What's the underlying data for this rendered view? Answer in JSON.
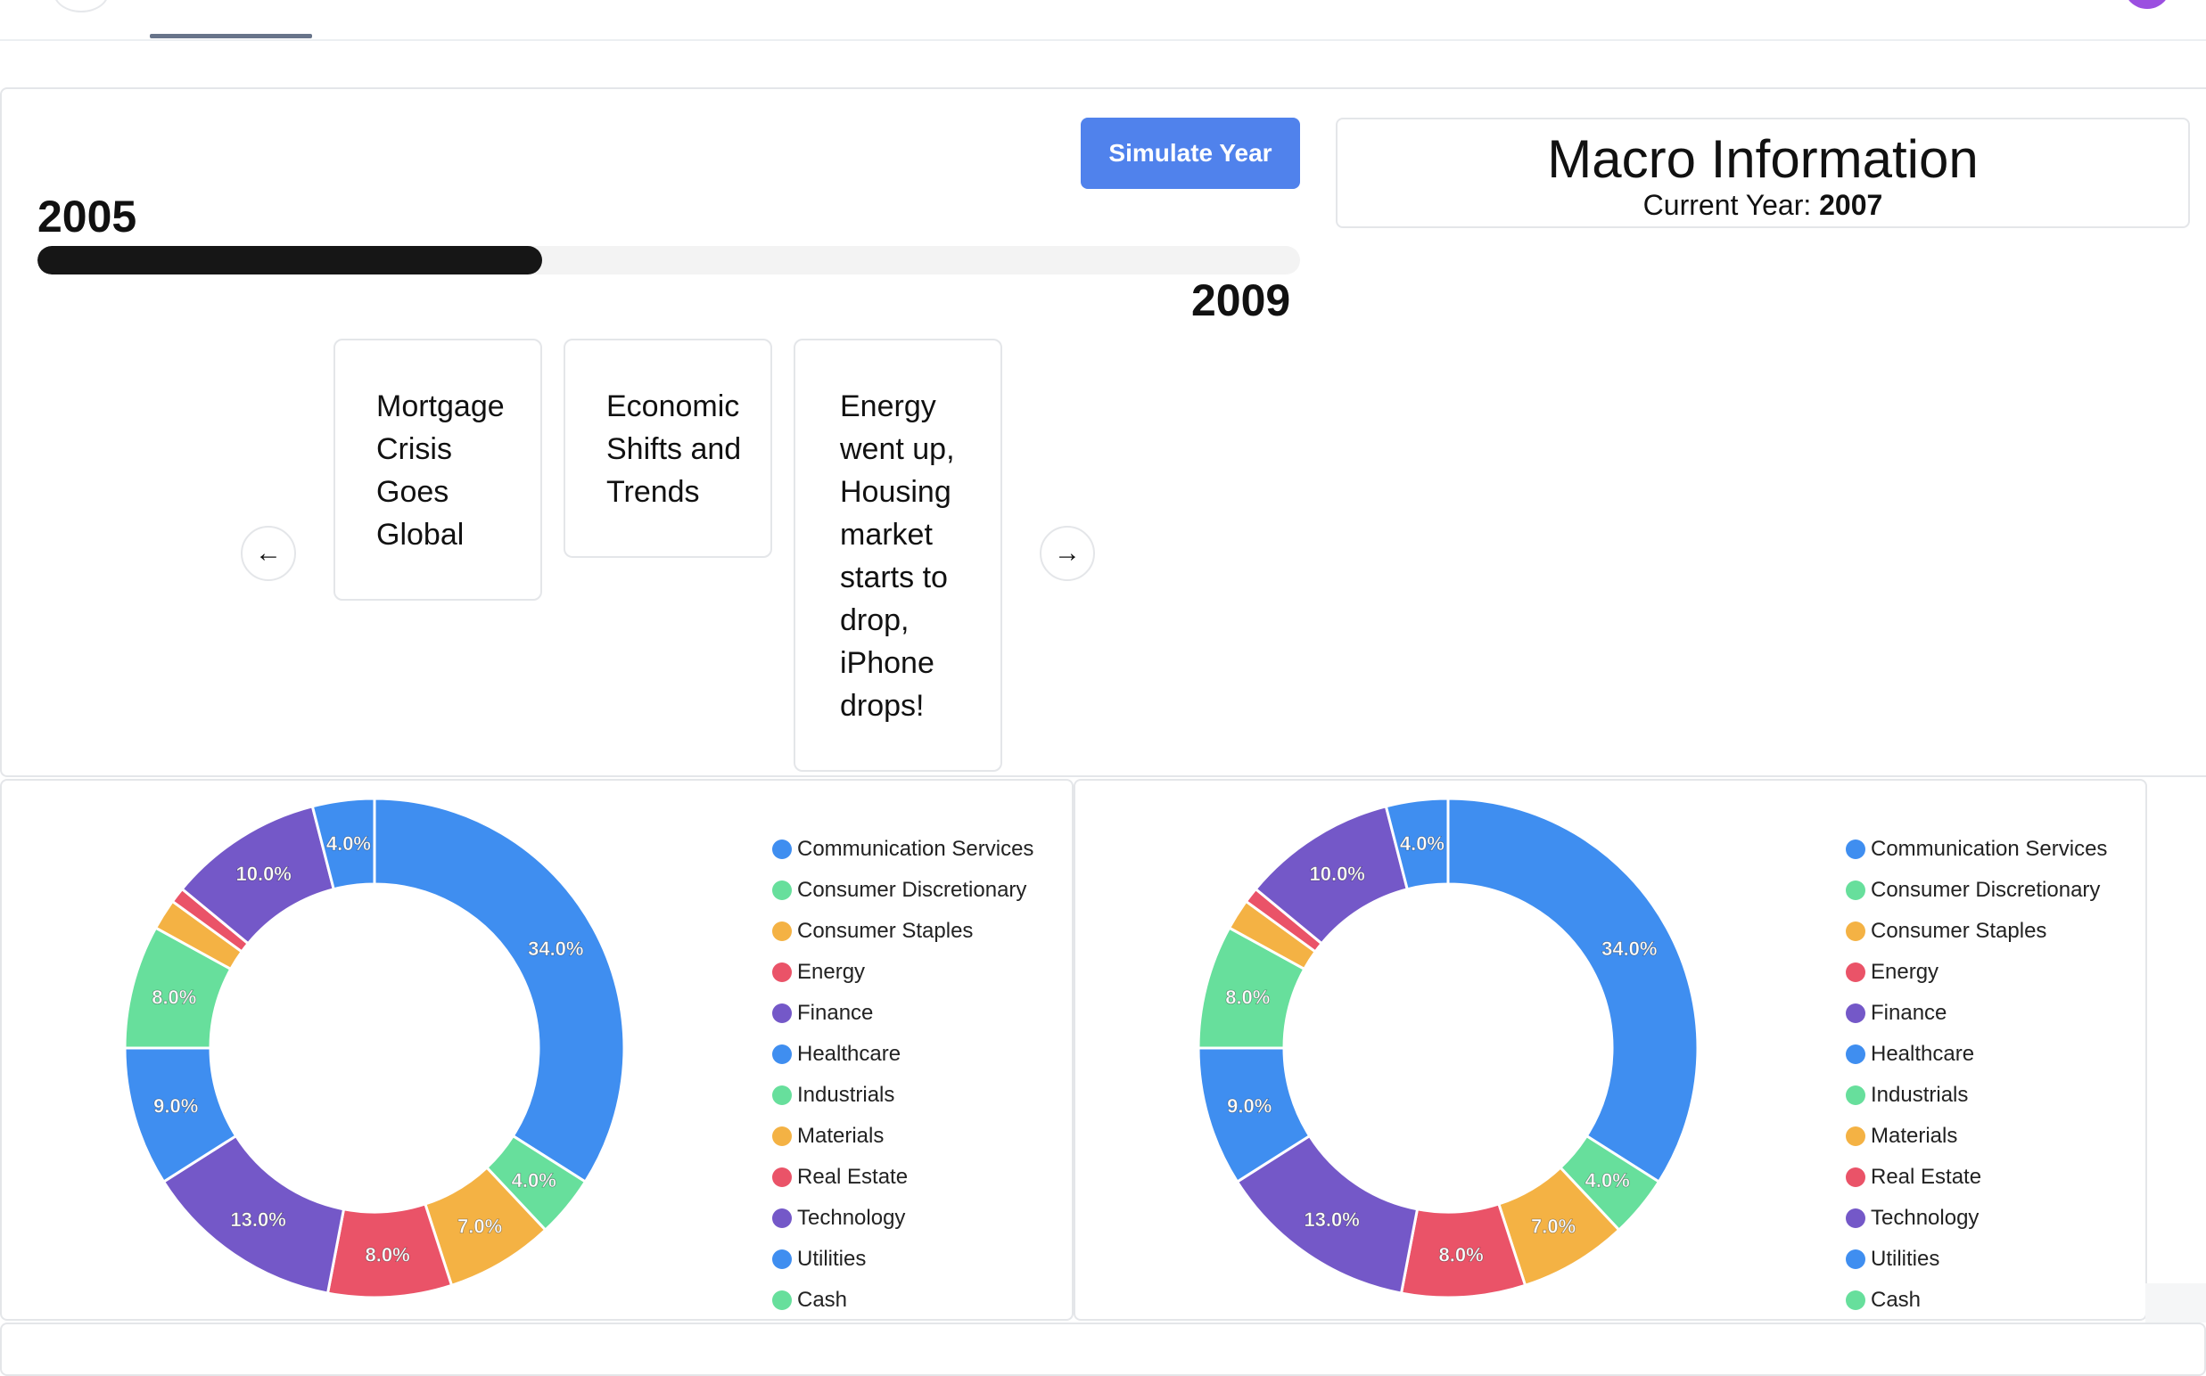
{
  "simulation": {
    "button_label": "Simulate Year",
    "start_year": "2005",
    "end_year": "2009",
    "progress": 0.4
  },
  "macro": {
    "title": "Macro Information",
    "current_year_label": "Current Year:",
    "current_year": "2007"
  },
  "events": [
    "Mortgage Crisis Goes Global",
    "Economic Shifts and Trends",
    "Energy went up, Housing market starts to drop, iPhone drops!"
  ],
  "icons": {
    "prev": "arrow-left-icon",
    "next": "arrow-right-icon"
  },
  "colors": {
    "blue": "#3f8ef0",
    "green": "#67df9c",
    "orange": "#f4b244",
    "red": "#ea5368",
    "purple": "#7458c8",
    "button": "#5082ec"
  },
  "chart_data": [
    {
      "type": "donut",
      "categories": [
        "Communication Services",
        "Consumer Discretionary",
        "Consumer Staples",
        "Energy",
        "Finance",
        "Healthcare",
        "Industrials",
        "Materials",
        "Real Estate",
        "Technology",
        "Utilities",
        "Cash"
      ],
      "values": [
        34,
        4,
        7,
        8,
        13,
        9,
        8,
        2,
        1,
        10,
        4,
        0
      ],
      "labels": [
        "34.0%",
        "4.0%",
        "7.0%",
        "8.0%",
        "13.0%",
        "9.0%",
        "8.0%",
        "",
        "",
        "10.0%",
        "4.0%",
        ""
      ],
      "colors": [
        "#3f8ef0",
        "#67df9c",
        "#f4b244",
        "#ea5368",
        "#7458c8",
        "#3f8ef0",
        "#67df9c",
        "#f4b244",
        "#ea5368",
        "#7458c8",
        "#3f8ef0",
        "#67df9c"
      ],
      "legend_position": "right"
    },
    {
      "type": "donut",
      "categories": [
        "Communication Services",
        "Consumer Discretionary",
        "Consumer Staples",
        "Energy",
        "Finance",
        "Healthcare",
        "Industrials",
        "Materials",
        "Real Estate",
        "Technology",
        "Utilities",
        "Cash"
      ],
      "values": [
        34,
        4,
        7,
        8,
        13,
        9,
        8,
        2,
        1,
        10,
        4,
        0
      ],
      "labels": [
        "34.0%",
        "4.0%",
        "7.0%",
        "8.0%",
        "13.0%",
        "9.0%",
        "8.0%",
        "",
        "",
        "10.0%",
        "4.0%",
        ""
      ],
      "colors": [
        "#3f8ef0",
        "#67df9c",
        "#f4b244",
        "#ea5368",
        "#7458c8",
        "#3f8ef0",
        "#67df9c",
        "#f4b244",
        "#ea5368",
        "#7458c8",
        "#3f8ef0",
        "#67df9c"
      ],
      "legend_position": "right"
    }
  ]
}
